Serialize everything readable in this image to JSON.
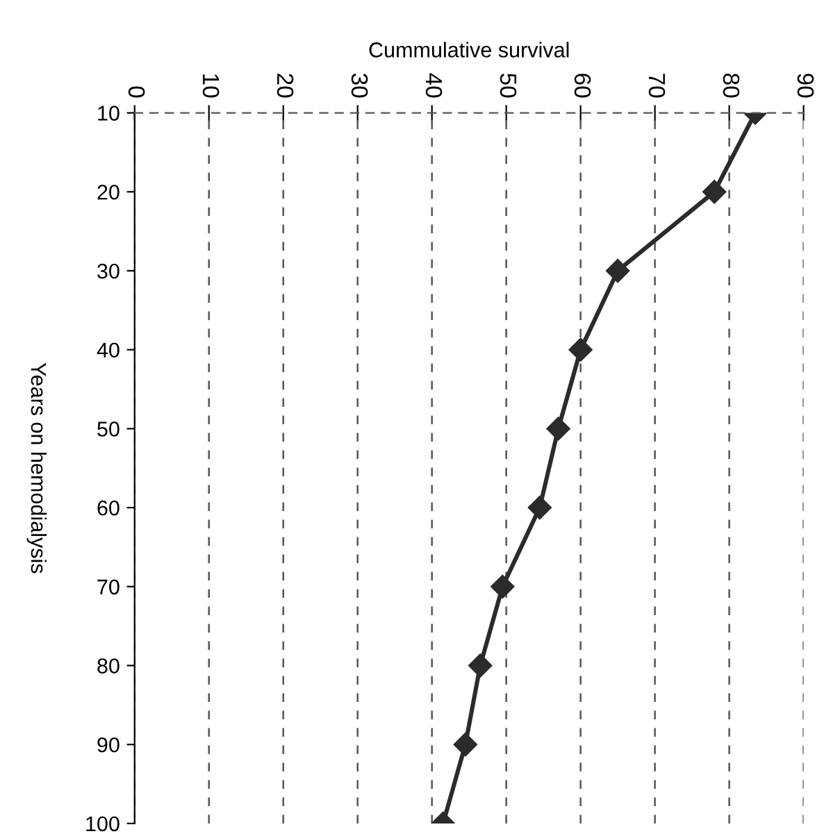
{
  "chart_data": {
    "type": "line",
    "orientation": "horizontal",
    "xlabel": "Cummulative survival",
    "ylabel": "Years on hemodialysis",
    "categories": [
      "10",
      "20",
      "30",
      "40",
      "50",
      "60",
      "70",
      "80",
      "90",
      "100"
    ],
    "series": [
      {
        "color": "#2b2b2b",
        "values": [
          83.5,
          78,
          65,
          60,
          57,
          54.5,
          49.5,
          46.5,
          44.5,
          41.5
        ]
      }
    ],
    "xlim": [
      0,
      90
    ],
    "xticks": [
      0,
      10,
      20,
      30,
      40,
      50,
      60,
      70,
      80,
      90
    ],
    "grid": "x",
    "marker": "diamond",
    "line_style": "solid"
  }
}
